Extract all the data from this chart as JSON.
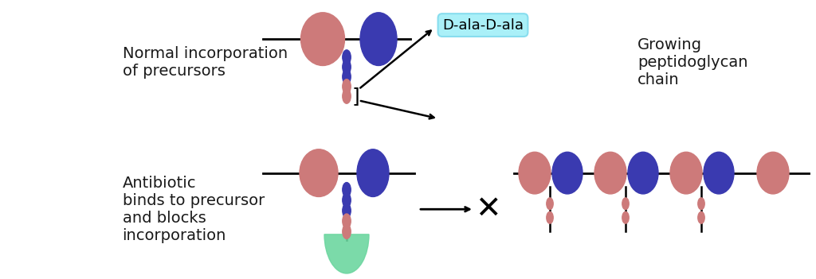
{
  "bg_top": "#d8d8d8",
  "bg_bot": "#d3d3d3",
  "salmon": "#cd7a7a",
  "blue_dark": "#3a3ab0",
  "green": "#6dd6a0",
  "text_color": "#1a1a1a",
  "cyan_box": "#aaf0f8",
  "label_top": "Normal incorporation\nof precursors",
  "label_bot": "Antibiotic\nbinds to precursor\nand blocks\nincorporation",
  "label_dala": "D-ala-D-ala",
  "label_growing": "Growing\npeptidoglycan\nchain",
  "fontsize_main": 14,
  "fontsize_label": 13
}
